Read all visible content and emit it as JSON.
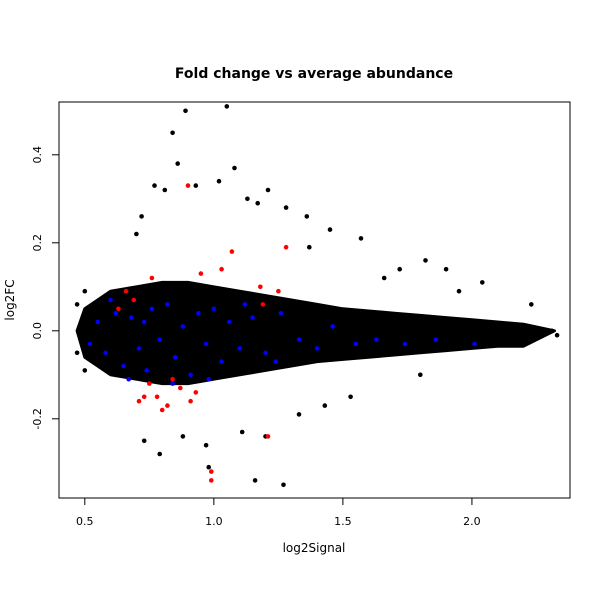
{
  "chart_data": {
    "type": "scatter",
    "title": "Fold change vs average abundance",
    "xlabel": "log2Signal",
    "ylabel": "log2FC",
    "xlim": [
      0.4,
      2.38
    ],
    "ylim": [
      -0.38,
      0.52
    ],
    "x_ticks": [
      0.5,
      1.0,
      1.5,
      2.0
    ],
    "x_tick_labels": [
      "0.5",
      "1.0",
      "1.5",
      "2.0"
    ],
    "y_ticks": [
      -0.2,
      0.0,
      0.2,
      0.4
    ],
    "y_tick_labels": [
      "-0.2",
      "0.0",
      "0.2",
      "0.4"
    ],
    "grid": false,
    "legend": "none",
    "colors": {
      "black": "#000000",
      "blue": "#0000ff",
      "red": "#ff0000"
    },
    "series": [
      {
        "color": "#000000",
        "points": [
          [
            0.84,
            0.45
          ],
          [
            0.89,
            0.5
          ],
          [
            1.05,
            0.51
          ],
          [
            0.86,
            0.38
          ],
          [
            0.93,
            0.33
          ],
          [
            1.02,
            0.34
          ],
          [
            1.08,
            0.37
          ],
          [
            1.21,
            0.32
          ],
          [
            1.28,
            0.28
          ],
          [
            1.36,
            0.26
          ],
          [
            1.45,
            0.23
          ],
          [
            0.77,
            0.33
          ],
          [
            0.72,
            0.26
          ],
          [
            0.7,
            0.22
          ],
          [
            0.81,
            0.32
          ],
          [
            1.13,
            0.3
          ],
          [
            1.17,
            0.29
          ],
          [
            1.57,
            0.21
          ],
          [
            1.82,
            0.16
          ],
          [
            1.72,
            0.14
          ],
          [
            1.9,
            0.14
          ],
          [
            2.04,
            0.11
          ],
          [
            2.23,
            0.06
          ],
          [
            2.31,
            0.0
          ],
          [
            2.33,
            -0.01
          ],
          [
            0.79,
            -0.28
          ],
          [
            0.73,
            -0.25
          ],
          [
            1.2,
            -0.24
          ],
          [
            1.27,
            -0.35
          ],
          [
            1.16,
            -0.34
          ],
          [
            1.11,
            -0.23
          ],
          [
            0.97,
            -0.26
          ],
          [
            0.88,
            -0.24
          ],
          [
            1.43,
            -0.17
          ],
          [
            1.33,
            -0.19
          ],
          [
            0.47,
            0.06
          ],
          [
            0.47,
            -0.05
          ],
          [
            0.5,
            0.09
          ],
          [
            0.5,
            -0.09
          ],
          [
            0.98,
            -0.31
          ],
          [
            1.37,
            0.19
          ],
          [
            1.66,
            0.12
          ],
          [
            1.95,
            0.09
          ],
          [
            1.53,
            -0.15
          ],
          [
            1.8,
            -0.1
          ]
        ]
      },
      {
        "color": "#0000ff",
        "points": [
          [
            0.52,
            -0.03
          ],
          [
            0.55,
            0.02
          ],
          [
            0.58,
            -0.05
          ],
          [
            0.62,
            0.04
          ],
          [
            0.65,
            -0.08
          ],
          [
            0.68,
            0.03
          ],
          [
            0.71,
            -0.04
          ],
          [
            0.74,
            -0.09
          ],
          [
            0.76,
            0.05
          ],
          [
            0.79,
            -0.02
          ],
          [
            0.82,
            0.06
          ],
          [
            0.85,
            -0.06
          ],
          [
            0.88,
            0.01
          ],
          [
            0.91,
            -0.1
          ],
          [
            0.94,
            0.04
          ],
          [
            0.97,
            -0.03
          ],
          [
            1.0,
            0.05
          ],
          [
            1.03,
            -0.07
          ],
          [
            1.06,
            0.02
          ],
          [
            1.1,
            -0.04
          ],
          [
            1.15,
            0.03
          ],
          [
            1.2,
            -0.05
          ],
          [
            1.26,
            0.04
          ],
          [
            1.33,
            -0.02
          ],
          [
            1.4,
            -0.04
          ],
          [
            1.46,
            0.01
          ],
          [
            1.55,
            -0.03
          ],
          [
            1.63,
            -0.02
          ],
          [
            1.74,
            -0.03
          ],
          [
            1.86,
            -0.02
          ],
          [
            2.01,
            -0.03
          ],
          [
            0.6,
            0.07
          ],
          [
            0.67,
            -0.11
          ],
          [
            0.73,
            0.02
          ],
          [
            0.84,
            -0.12
          ],
          [
            0.98,
            -0.11
          ],
          [
            1.12,
            0.06
          ],
          [
            1.24,
            -0.07
          ]
        ]
      },
      {
        "color": "#ff0000",
        "points": [
          [
            0.9,
            0.33
          ],
          [
            1.07,
            0.18
          ],
          [
            1.28,
            0.19
          ],
          [
            0.76,
            0.12
          ],
          [
            0.66,
            0.09
          ],
          [
            0.69,
            0.07
          ],
          [
            0.95,
            0.13
          ],
          [
            1.03,
            0.14
          ],
          [
            1.18,
            0.1
          ],
          [
            1.25,
            0.09
          ],
          [
            0.78,
            -0.15
          ],
          [
            0.82,
            -0.17
          ],
          [
            0.71,
            -0.16
          ],
          [
            0.87,
            -0.13
          ],
          [
            0.93,
            -0.14
          ],
          [
            0.75,
            -0.12
          ],
          [
            0.8,
            -0.18
          ],
          [
            0.91,
            -0.16
          ],
          [
            1.21,
            -0.24
          ],
          [
            0.99,
            -0.32
          ],
          [
            0.99,
            -0.34
          ],
          [
            0.73,
            -0.15
          ],
          [
            0.84,
            -0.11
          ],
          [
            1.19,
            0.06
          ],
          [
            0.63,
            0.05
          ]
        ]
      }
    ]
  }
}
